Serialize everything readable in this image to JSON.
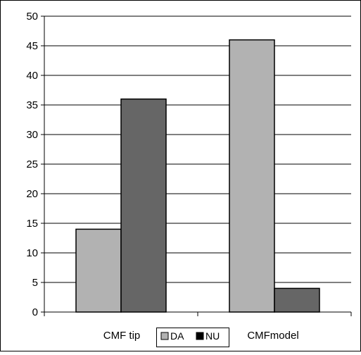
{
  "chart_data": {
    "type": "bar",
    "title": "",
    "xlabel": "",
    "ylabel": "",
    "ylim": [
      0,
      50
    ],
    "yticks": [
      0,
      5,
      10,
      15,
      20,
      25,
      30,
      35,
      40,
      45,
      50
    ],
    "grid": true,
    "categories": [
      "CMF tip",
      "CMFmodel"
    ],
    "series": [
      {
        "name": "DA",
        "values": [
          14,
          46
        ],
        "color": "#b2b2b2"
      },
      {
        "name": "NU",
        "values": [
          36,
          4
        ],
        "color": "#666666"
      }
    ],
    "legend": {
      "placement": "bottom-center",
      "entries": [
        "DA",
        "NU"
      ],
      "swatch_colors": [
        "#b2b2b2",
        "#000000"
      ]
    }
  }
}
